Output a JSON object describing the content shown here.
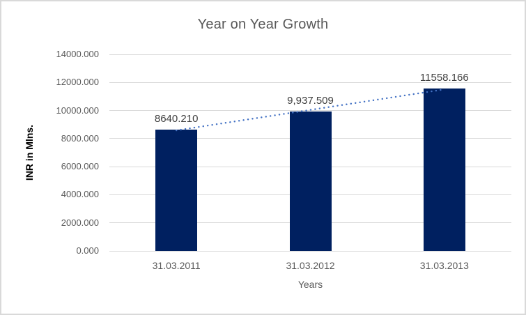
{
  "chart_data": {
    "type": "bar",
    "title": "Year on Year Growth",
    "categories": [
      "31.03.2011",
      "31.03.2012",
      "31.03.2013"
    ],
    "values": [
      8640.21,
      9937.509,
      11558.166
    ],
    "data_labels": [
      "8640.210",
      "9,937.509",
      "11558.166"
    ],
    "xlabel": "Years",
    "ylabel": "INR in Mlns.",
    "ylim": [
      0,
      14000
    ],
    "ytick_step": 2000,
    "ytick_labels": [
      "0.000",
      "2000.000",
      "4000.000",
      "6000.000",
      "8000.000",
      "10000.000",
      "12000.000",
      "14000.000"
    ],
    "grid": true,
    "legend": "none",
    "trendline": {
      "type": "linear",
      "style": "dotted"
    },
    "colors": {
      "bar": "#002060",
      "trendline": "#4472C4",
      "gridline": "#D9D9D9",
      "title": "#595959",
      "tick_label": "#595959",
      "data_label": "#404040",
      "axis_title_y": "#000000",
      "axis_title_x": "#595959",
      "border": "#D9D9D9",
      "background": "#FFFFFF"
    }
  }
}
